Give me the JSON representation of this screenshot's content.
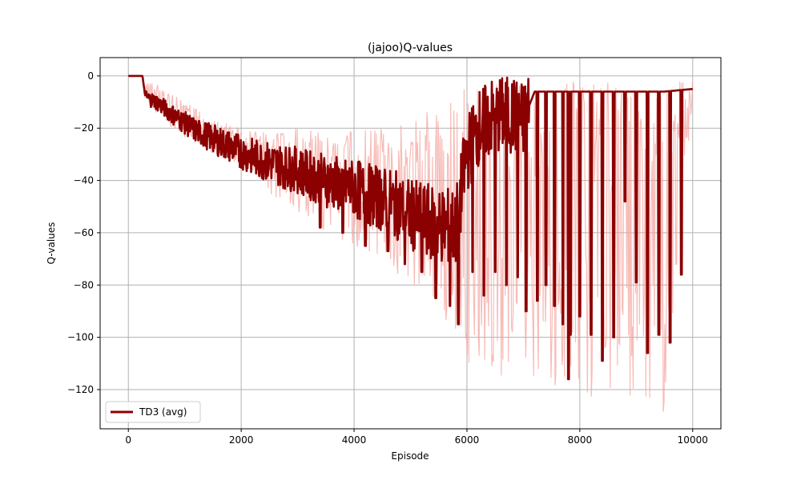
{
  "chart_data": {
    "type": "line",
    "title": "(jajoo)Q-values",
    "xlabel": "Episode",
    "ylabel": "Q-values",
    "xlim": [
      -500,
      10500
    ],
    "ylim": [
      -135,
      7
    ],
    "xticks": [
      0,
      2000,
      4000,
      6000,
      8000,
      10000
    ],
    "yticks": [
      0,
      -20,
      -40,
      -60,
      -80,
      -100,
      -120
    ],
    "grid": true,
    "legend_position": "lower-left",
    "colors": {
      "avg": "#8b0000",
      "raw": "#f4a6a0",
      "grid": "#b0b0b0"
    },
    "series": [
      {
        "name": "TD3 (avg)",
        "role": "avg",
        "x": [
          0,
          250,
          300,
          500,
          800,
          1000,
          1200,
          1500,
          1800,
          2000,
          2200,
          2500,
          2800,
          3000,
          3200,
          3500,
          3800,
          4000,
          4200,
          4500,
          4800,
          5000,
          5200,
          5500,
          5800,
          6000,
          6200,
          6500,
          6800,
          7000,
          7200,
          7500,
          7800,
          8000,
          8500,
          9000,
          9500,
          10000
        ],
        "y": [
          0,
          0,
          -8,
          -10,
          -15,
          -18,
          -21,
          -24,
          -27,
          -29,
          -31,
          -33,
          -35,
          -36,
          -38,
          -40,
          -42,
          -43,
          -45,
          -47,
          -50,
          -53,
          -55,
          -57,
          -58,
          -30,
          -20,
          -15,
          -15,
          -17,
          -6,
          -6,
          -6,
          -6,
          -6,
          -6,
          -6,
          -5
        ],
        "spike_x": [
          3400,
          3800,
          4200,
          4600,
          4900,
          5200,
          5450,
          5700,
          5850,
          6100,
          6300,
          6500,
          6700,
          6900,
          7050,
          7250,
          7400,
          7550,
          7700,
          7800,
          7830,
          8000,
          8200,
          8400,
          8600,
          8800,
          9000,
          9200,
          9400,
          9600,
          9800
        ],
        "spike_y": [
          -58,
          -60,
          -65,
          -67,
          -72,
          -75,
          -85,
          -88,
          -95,
          -75,
          -84,
          -75,
          -80,
          -77,
          -90,
          -86,
          -80,
          -88,
          -95,
          -116,
          -99,
          -92,
          -99,
          -109,
          -100,
          -48,
          -79,
          -106,
          -99,
          -102,
          -76
        ]
      },
      {
        "name": "raw",
        "role": "raw",
        "x": [
          0,
          250,
          300,
          500,
          1000,
          1500,
          2000,
          2500,
          3000,
          3500,
          4000,
          4500,
          5000,
          5500,
          5800,
          6000,
          6500,
          7000,
          7500,
          8000,
          8500,
          9000,
          9500,
          10000
        ],
        "y_high": [
          0,
          0,
          -2,
          -3,
          -10,
          -16,
          -20,
          -22,
          -20,
          -22,
          -20,
          -18,
          -15,
          -12,
          -5,
          -5,
          -3,
          -3,
          -2,
          -2,
          -2,
          -1,
          -1,
          -2
        ],
        "y_low": [
          0,
          0,
          -10,
          -15,
          -24,
          -30,
          -36,
          -45,
          -52,
          -60,
          -66,
          -72,
          -80,
          -88,
          -103,
          -110,
          -115,
          -118,
          -120,
          -122,
          -124,
          -128,
          -132,
          -12
        ]
      }
    ]
  },
  "legend": {
    "label": "TD3 (avg)"
  }
}
